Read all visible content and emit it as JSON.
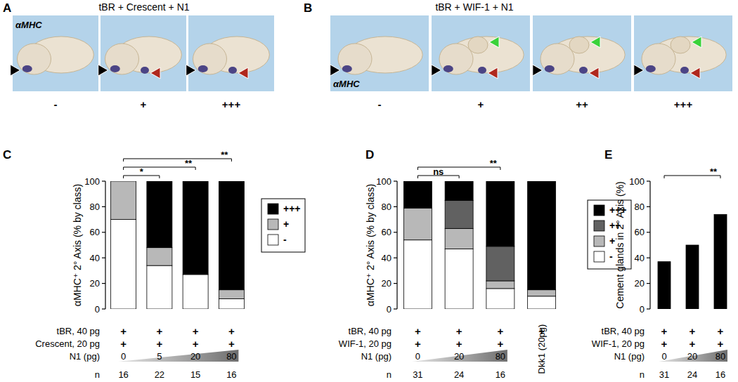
{
  "panels": {
    "A": {
      "letter": "A",
      "title": "tBR + Crescent + N1",
      "stain": "αMHC",
      "classes": [
        "-",
        "+",
        "+++"
      ]
    },
    "B": {
      "letter": "B",
      "title": "tBR + WIF-1 + N1",
      "stain": "αMHC",
      "classes": [
        "-",
        "+",
        "++",
        "+++"
      ]
    }
  },
  "chart_data": [
    {
      "type": "bar",
      "stacked": true,
      "panel": "C",
      "y_label": "αMHC⁺ 2° Axis (% by class)",
      "ylim": [
        0,
        100
      ],
      "yticks": [
        0,
        20,
        40,
        60,
        80,
        100
      ],
      "legend": "right",
      "categories": [
        "0",
        "5",
        "20",
        "80"
      ],
      "x_label": "N1 (pg)",
      "series": [
        {
          "name": "-",
          "color": "#ffffff",
          "values": [
            70,
            34,
            27,
            8
          ]
        },
        {
          "name": "+",
          "color": "#b8b8b8",
          "values": [
            30,
            14,
            0,
            7
          ]
        },
        {
          "name": "+++",
          "color": "#000000",
          "values": [
            0,
            52,
            73,
            85
          ]
        }
      ],
      "conditions": [
        {
          "label": "tBR, 40 pg",
          "values": [
            "+",
            "+",
            "+",
            "+"
          ]
        },
        {
          "label": "Crescent, 20 pg",
          "values": [
            "+",
            "+",
            "+",
            "+"
          ]
        }
      ],
      "n_label": "n",
      "n": [
        16,
        22,
        15,
        16
      ],
      "significance": [
        {
          "from": 0,
          "to": 1,
          "label": "*"
        },
        {
          "from": 0,
          "to": 2,
          "label": "**"
        },
        {
          "from": 0,
          "to": 3,
          "label": "**"
        }
      ]
    },
    {
      "type": "bar",
      "stacked": true,
      "panel": "D",
      "y_label": "αMHC⁺ 2° Axis (% by class)",
      "ylim": [
        0,
        100
      ],
      "yticks": [
        0,
        20,
        40,
        60,
        80,
        100
      ],
      "legend": "right",
      "categories": [
        "0",
        "20",
        "80",
        null
      ],
      "x_label": "N1 (pg)",
      "series": [
        {
          "name": "-",
          "color": "#ffffff",
          "values": [
            54,
            47,
            16,
            10
          ]
        },
        {
          "name": "+",
          "color": "#b8b8b8",
          "values": [
            25,
            16,
            6,
            5
          ]
        },
        {
          "name": "++",
          "color": "#616161",
          "values": [
            0,
            22,
            27,
            0
          ]
        },
        {
          "name": "+++",
          "color": "#000000",
          "values": [
            21,
            15,
            51,
            85
          ]
        }
      ],
      "conditions": [
        {
          "label": "tBR, 40 pg",
          "values": [
            "+",
            "+",
            "+",
            "+"
          ]
        },
        {
          "label": "WIF-1, 20 pg",
          "values": [
            "+",
            "+",
            "+",
            null
          ]
        }
      ],
      "n_label": "n",
      "n": [
        31,
        24,
        16,
        null
      ],
      "annotations": [
        {
          "text": "Dkk1 (20pg)",
          "index": 3
        }
      ],
      "significance": [
        {
          "from": 0,
          "to": 1,
          "label": "ns"
        },
        {
          "from": 0,
          "to": 2,
          "label": "**"
        }
      ]
    },
    {
      "type": "bar",
      "panel": "E",
      "y_label": "Cement glands in 2° Axis (%)",
      "ylim": [
        0,
        100
      ],
      "yticks": [
        0,
        20,
        40,
        60,
        80,
        100
      ],
      "categories": [
        "0",
        "20",
        "80"
      ],
      "x_label": "N1 (pg)",
      "values": [
        37,
        50,
        74
      ],
      "color": "#000000",
      "conditions": [
        {
          "label": "tBR, 40 pg",
          "values": [
            "+",
            "+",
            "+"
          ]
        },
        {
          "label": "WIF-1, 20 pg",
          "values": [
            "+",
            "+",
            "+"
          ]
        }
      ],
      "n_label": "n",
      "n": [
        31,
        24,
        16
      ],
      "significance": [
        {
          "from": 0,
          "to": 2,
          "label": "**"
        }
      ]
    }
  ]
}
